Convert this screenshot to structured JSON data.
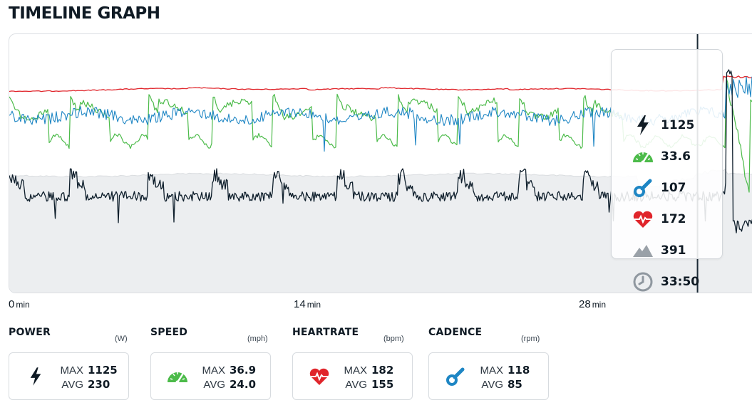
{
  "page": {
    "title": "TIMELINE GRAPH"
  },
  "colors": {
    "power": "#0f1f2c",
    "speed": "#4cbb4a",
    "cadence": "#1e86c4",
    "heartrate": "#e0252b",
    "elevation_fill": "#eceef0",
    "cursor": "#1b2a36"
  },
  "chart_data": {
    "type": "line",
    "x_unit": "min",
    "x_ticks": [
      {
        "value": "0",
        "unit": "min"
      },
      {
        "value": "14",
        "unit": "min"
      },
      {
        "value": "28",
        "unit": "min"
      }
    ],
    "cursor_time_min": 33.83,
    "series": [
      {
        "key": "heartrate",
        "icon": "heart-icon",
        "cursor_value": "172",
        "typical": 155,
        "max": 182
      },
      {
        "key": "speed",
        "icon": "speedometer-icon",
        "cursor_value": "33.6",
        "typical": 24.0,
        "max": 36.9
      },
      {
        "key": "cadence",
        "icon": "pedal-icon",
        "cursor_value": "107",
        "typical": 85,
        "max": 118
      },
      {
        "key": "power",
        "icon": "bolt-icon",
        "cursor_value": "1125",
        "typical": 230,
        "max": 1125
      },
      {
        "key": "elevation",
        "icon": "mountain-icon",
        "cursor_value": "391"
      }
    ],
    "duration_label": {
      "icon": "clock-icon",
      "value": "33:50"
    }
  },
  "tooltip": {
    "power": "1125",
    "speed": "33.6",
    "cadence": "107",
    "heartrate": "172",
    "elevation": "391",
    "time": "33:50"
  },
  "metrics": [
    {
      "title": "POWER",
      "unit": "(W)",
      "icon": "bolt-icon",
      "max_label": "MAX",
      "max": "1125",
      "avg_label": "AVG",
      "avg": "230"
    },
    {
      "title": "SPEED",
      "unit": "(mph)",
      "icon": "speedometer-icon",
      "max_label": "MAX",
      "max": "36.9",
      "avg_label": "AVG",
      "avg": "24.0"
    },
    {
      "title": "HEARTRATE",
      "unit": "(bpm)",
      "icon": "heart-icon",
      "max_label": "MAX",
      "max": "182",
      "avg_label": "AVG",
      "avg": "155"
    },
    {
      "title": "CADENCE",
      "unit": "(rpm)",
      "icon": "pedal-icon",
      "max_label": "MAX",
      "max": "118",
      "avg_label": "AVG",
      "avg": "85"
    }
  ]
}
